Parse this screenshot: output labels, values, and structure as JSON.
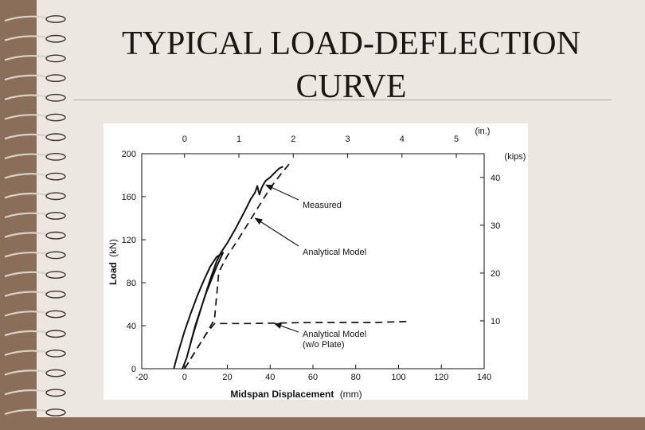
{
  "slide": {
    "title_line1": "TYPICAL LOAD-DEFLECTION",
    "title_line2": "CURVE",
    "colors": {
      "frame": "#8b6e5a",
      "paper": "#ece7e1",
      "ink": "#1a1612"
    }
  },
  "chart_data": {
    "type": "line",
    "title": "",
    "xlabel_bold": "Midspan Displacement",
    "xlabel_unit": "(mm)",
    "ylabel_bold": "Load",
    "ylabel_unit": "(kN)",
    "top_axis_unit": "(in.)",
    "right_axis_unit": "(kips)",
    "xlim": [
      -20,
      140
    ],
    "ylim": [
      0,
      200
    ],
    "x_ticks": [
      -20,
      0,
      20,
      40,
      60,
      80,
      100,
      120,
      140
    ],
    "y_ticks": [
      0,
      40,
      80,
      120,
      160,
      200
    ],
    "top_ticks": [
      0,
      1,
      2,
      3,
      4,
      5
    ],
    "right_ticks": [
      10,
      20,
      30,
      40
    ],
    "grid": false,
    "series": [
      {
        "name": "Measured",
        "style": "solid",
        "x": [
          -5,
          -3,
          0,
          3,
          6,
          9,
          12,
          15,
          18,
          15,
          10,
          5,
          1,
          -1,
          1,
          4,
          8,
          12,
          15,
          17,
          20,
          24,
          28,
          31,
          33,
          34,
          35,
          36,
          37,
          38,
          40,
          42,
          44,
          45,
          46
        ],
        "y": [
          0,
          15,
          35,
          52,
          68,
          82,
          95,
          104,
          108,
          95,
          70,
          40,
          10,
          0,
          10,
          32,
          58,
          83,
          100,
          108,
          117,
          131,
          146,
          158,
          164,
          170,
          162,
          168,
          172,
          175,
          178,
          182,
          186,
          187,
          188
        ]
      },
      {
        "name": "Analytical Model",
        "style": "dashed",
        "x": [
          0,
          5,
          10,
          14,
          16,
          20,
          25,
          30,
          35,
          40,
          45,
          50
        ],
        "y": [
          0,
          16,
          32,
          46,
          90,
          105,
          120,
          136,
          152,
          168,
          181,
          193
        ]
      },
      {
        "name": "Analytical Model (w/o Plate)",
        "style": "dashed",
        "x": [
          0,
          5,
          10,
          14,
          30,
          60,
          90,
          105
        ],
        "y": [
          0,
          16,
          32,
          42,
          42,
          43,
          43,
          44
        ]
      }
    ],
    "annotations": [
      {
        "text": "Measured",
        "arrow_to": [
          38,
          171
        ]
      },
      {
        "text": "Analytical Model",
        "arrow_to": [
          33,
          140
        ]
      },
      {
        "text": "Analytical Model",
        "line2": "(w/o Plate)",
        "arrow_to": [
          42,
          42
        ]
      }
    ]
  }
}
